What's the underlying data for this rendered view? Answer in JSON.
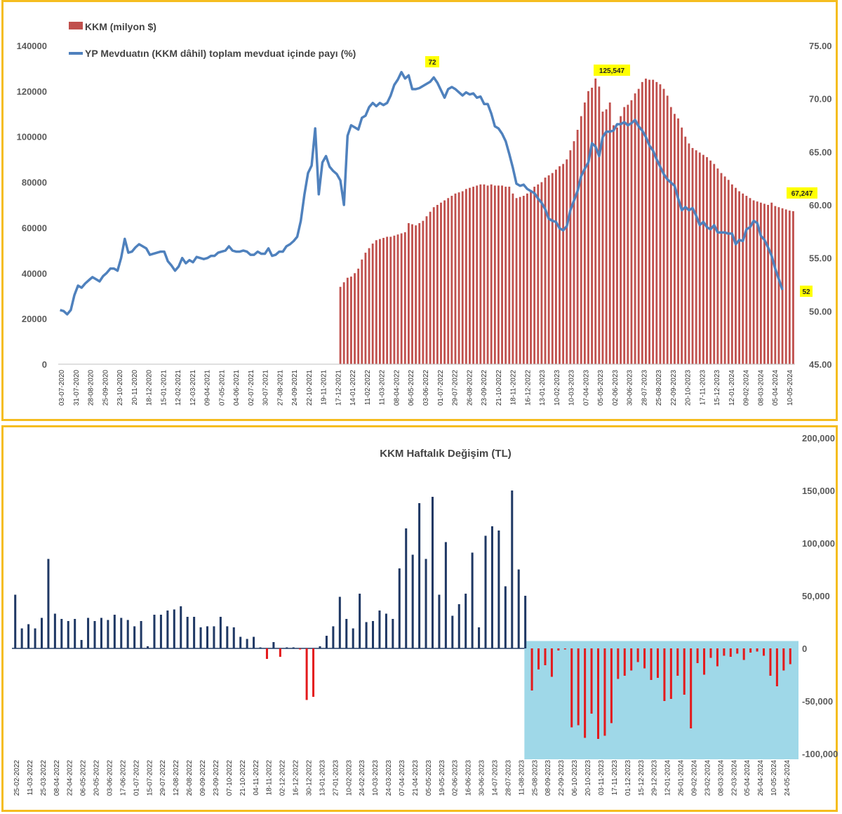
{
  "chart_data": [
    {
      "type": "bar+line",
      "title": "",
      "legend": [
        {
          "name": "KKM (milyon $)",
          "color": "#c0504d"
        },
        {
          "name": "YP Mevduatın (KKM dâhil) toplam mevduat içinde payı (%)",
          "color": "#4f81bd"
        }
      ],
      "legend_placement": "top-left",
      "y_left": {
        "ticks": [
          "0",
          "20000",
          "40000",
          "60000",
          "80000",
          "100000",
          "120000",
          "140000"
        ],
        "ylim": [
          0,
          140000
        ]
      },
      "y_right": {
        "ticks": [
          "45.00",
          "50.00",
          "55.00",
          "60.00",
          "65.00",
          "70.00",
          "75.00"
        ],
        "ylim": [
          45,
          75
        ]
      },
      "x_tick_labels": [
        "03-07-2020",
        "31-07-2020",
        "28-08-2020",
        "25-09-2020",
        "23-10-2020",
        "20-11-2020",
        "18-12-2020",
        "15-01-2021",
        "12-02-2021",
        "12-03-2021",
        "09-04-2021",
        "07-05-2021",
        "04-06-2021",
        "02-07-2021",
        "30-07-2021",
        "27-08-2021",
        "24-09-2021",
        "22-10-2021",
        "19-11-2021",
        "17-12-2021",
        "14-01-2022",
        "11-02-2022",
        "11-03-2022",
        "08-04-2022",
        "06-05-2022",
        "03-06-2022",
        "01-07-2022",
        "29-07-2022",
        "26-08-2022",
        "23-09-2022",
        "21-10-2022",
        "18-11-2022",
        "16-12-2022",
        "13-01-2023",
        "10-02-2023",
        "10-03-2023",
        "07-04-2023",
        "05-05-2023",
        "02-06-2023",
        "30-06-2023",
        "28-07-2023",
        "25-08-2023",
        "22-09-2023",
        "20-10-2023",
        "17-11-2023",
        "15-12-2023",
        "12-01-2024",
        "09-02-2024",
        "08-03-2024",
        "05-04-2024",
        "10-05-2024"
      ],
      "callouts": {
        "line_peak": "72",
        "bar_peak": "125,547",
        "bar_last": "67,247",
        "line_last": "52"
      },
      "kkm_bar_values": [
        34000,
        36000,
        38000,
        38500,
        40000,
        42000,
        46000,
        49000,
        51000,
        53000,
        54500,
        55000,
        55500,
        56000,
        56000,
        56500,
        57000,
        57500,
        58000,
        62000,
        61500,
        61000,
        62000,
        63000,
        65000,
        67000,
        69000,
        70000,
        71000,
        72000,
        73000,
        74000,
        75000,
        75500,
        76000,
        77000,
        77500,
        78000,
        78500,
        79000,
        79000,
        78500,
        79000,
        78500,
        78500,
        78500,
        78000,
        78000,
        75000,
        73000,
        73500,
        74000,
        75000,
        76000,
        78000,
        79000,
        80000,
        82000,
        83000,
        84000,
        85500,
        87000,
        88000,
        90000,
        94000,
        98000,
        103000,
        109000,
        115000,
        120000,
        121500,
        125547,
        122000,
        111000,
        112000,
        115000,
        105000,
        104000,
        109000,
        113000,
        114000,
        116000,
        119000,
        121000,
        124000,
        125500,
        125000,
        125000,
        124000,
        123000,
        121000,
        118000,
        113000,
        110000,
        108000,
        104000,
        100000,
        97000,
        95000,
        94000,
        93000,
        92000,
        91000,
        89500,
        88000,
        86000,
        84000,
        82500,
        81000,
        79000,
        77500,
        76000,
        75000,
        74000,
        73000,
        72000,
        71500,
        71000,
        70500,
        70000,
        71000,
        69500,
        69000,
        68500,
        68000,
        67500,
        67247
      ],
      "yp_share_line": [
        50.1,
        50.0,
        49.7,
        50.1,
        51.5,
        52.4,
        52.2,
        52.6,
        52.9,
        53.2,
        53.0,
        52.8,
        53.3,
        53.6,
        54.0,
        54.0,
        53.8,
        55.0,
        56.8,
        55.5,
        55.6,
        56.0,
        56.3,
        56.1,
        55.9,
        55.3,
        55.4,
        55.5,
        55.6,
        55.6,
        54.7,
        54.3,
        53.8,
        54.2,
        55.0,
        54.5,
        54.8,
        54.6,
        55.1,
        55.0,
        54.9,
        55.0,
        55.2,
        55.2,
        55.5,
        55.6,
        55.7,
        56.1,
        55.7,
        55.6,
        55.6,
        55.7,
        55.6,
        55.3,
        55.3,
        55.6,
        55.4,
        55.4,
        55.9,
        55.2,
        55.3,
        55.6,
        55.6,
        56.1,
        56.3,
        56.6,
        57.0,
        58.5,
        61.0,
        63.0,
        63.7,
        67.2,
        61.0,
        64.0,
        64.6,
        63.6,
        63.2,
        62.9,
        62.3,
        60.0,
        66.5,
        67.5,
        67.3,
        67.1,
        68.2,
        68.4,
        69.2,
        69.6,
        69.3,
        69.6,
        69.4,
        69.6,
        70.3,
        71.3,
        71.8,
        72.5,
        71.9,
        72.2,
        70.9,
        70.9,
        71.0,
        71.2,
        71.4,
        71.6,
        72.0,
        71.5,
        70.8,
        70.1,
        70.9,
        71.1,
        70.9,
        70.6,
        70.3,
        70.6,
        70.4,
        70.5,
        70.1,
        70.2,
        69.5,
        69.5,
        68.6,
        67.4,
        67.2,
        66.7,
        66.0,
        64.8,
        63.5,
        62.0,
        61.8,
        61.9,
        61.5,
        61.3,
        61.1,
        60.6,
        60.2,
        59.6,
        58.7,
        58.5,
        58.4,
        57.8,
        57.6,
        58.0,
        59.5,
        60.4,
        61.3,
        62.7,
        63.4,
        64.0,
        65.8,
        65.5,
        64.6,
        66.4,
        66.9,
        66.9,
        67.0,
        67.6,
        67.6,
        67.8,
        67.5,
        67.7,
        68.0,
        67.4,
        67.0,
        66.4,
        65.6,
        65.1,
        64.3,
        63.6,
        62.9,
        62.4,
        62.1,
        61.8,
        60.6,
        59.5,
        59.8,
        59.5,
        59.7,
        59.0,
        58.1,
        58.4,
        57.9,
        57.7,
        58.1,
        57.4,
        57.4,
        57.4,
        57.3,
        57.3,
        56.3,
        56.7,
        56.6,
        57.7,
        57.9,
        58.5,
        58.3,
        57.1,
        56.7,
        56.0,
        55.2,
        54.0,
        53.0,
        52.0
      ],
      "x_axis_count": 205
    },
    {
      "type": "bar",
      "title": "KKM Haftalık Değişim (TL)",
      "y_right": {
        "ticks": [
          "200,000",
          "150,000",
          "100,000",
          "50,000",
          "0",
          "-50,000",
          "-100,000"
        ],
        "ylim": [
          -100000,
          200000
        ]
      },
      "colors": {
        "positive": "#1f3864",
        "negative": "#e41a1c",
        "highlight_bg": "#9fd8e8"
      },
      "x_tick_labels": [
        "25-02-2022",
        "11-03-2022",
        "25-03-2022",
        "08-04-2022",
        "22-04-2022",
        "06-05-2022",
        "20-05-2022",
        "03-06-2022",
        "17-06-2022",
        "01-07-2022",
        "15-07-2022",
        "29-07-2022",
        "12-08-2022",
        "26-08-2022",
        "09-09-2022",
        "23-09-2022",
        "07-10-2022",
        "21-10-2022",
        "04-11-2022",
        "18-11-2022",
        "02-12-2022",
        "16-12-2022",
        "30-12-2022",
        "13-01-2023",
        "27-01-2023",
        "10-02-2023",
        "24-02-2023",
        "10-03-2023",
        "24-03-2023",
        "07-04-2023",
        "21-04-2023",
        "05-05-2023",
        "19-05-2023",
        "02-06-2023",
        "16-06-2023",
        "30-06-2023",
        "14-07-2023",
        "28-07-2023",
        "11-08-2023",
        "25-08-2023",
        "08-09-2023",
        "22-09-2023",
        "06-10-2023",
        "20-10-2023",
        "03-11-2023",
        "17-11-2023",
        "01-12-2023",
        "15-12-2023",
        "29-12-2023",
        "12-01-2024",
        "26-01-2024",
        "09-02-2024",
        "23-02-2024",
        "08-03-2024",
        "22-03-2024",
        "05-04-2024",
        "26-04-2024",
        "10-05-2024",
        "24-05-2024"
      ],
      "values": [
        51000,
        19000,
        23000,
        19000,
        29000,
        85000,
        33000,
        28000,
        26000,
        28000,
        8000,
        29000,
        26000,
        29000,
        27000,
        32000,
        29000,
        27000,
        21000,
        26000,
        2000,
        32000,
        32000,
        36000,
        37000,
        40000,
        30000,
        30000,
        20000,
        21000,
        21000,
        30000,
        21000,
        20000,
        11000,
        9000,
        11000,
        1000,
        -10000,
        6000,
        -8000,
        1000,
        1000,
        -1000,
        -49000,
        -46000,
        2000,
        12000,
        21000,
        49000,
        28000,
        19000,
        52000,
        25000,
        26000,
        36000,
        33000,
        28000,
        76000,
        114000,
        89000,
        138000,
        85000,
        144000,
        51000,
        101000,
        31000,
        42000,
        52000,
        91000,
        20000,
        107000,
        116000,
        112000,
        59000,
        150000,
        75000,
        50000,
        -40000,
        -20000,
        -16000,
        -27000,
        -2000,
        -1000,
        -75000,
        -73000,
        -85000,
        -62000,
        -86000,
        -83000,
        -71000,
        -29000,
        -26000,
        -21000,
        -13000,
        -19000,
        -30000,
        -28000,
        -50000,
        -48000,
        -26000,
        -44000,
        -76000,
        -14000,
        -25000,
        -9000,
        -17000,
        -7000,
        -8000,
        -5000,
        -11000,
        -4000,
        -3000,
        -7000,
        -26000,
        -36000,
        -21000,
        -15000
      ]
    }
  ]
}
